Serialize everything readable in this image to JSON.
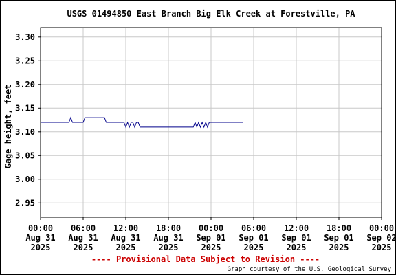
{
  "chart_data": {
    "type": "line",
    "title": "USGS 01494850 East Branch Big Elk Creek at Forestville, PA",
    "ylabel": "Gage height, feet",
    "xlabel": "",
    "ylim": [
      2.92,
      3.32
    ],
    "yticks": [
      "3.30",
      "3.25",
      "3.20",
      "3.15",
      "3.10",
      "3.05",
      "3.00",
      "2.95"
    ],
    "xlim": [
      "2025-08-31 00:00",
      "2025-09-02 00:00"
    ],
    "xticks": [
      {
        "time": "00:00",
        "date": "Aug 31",
        "year": "2025"
      },
      {
        "time": "06:00",
        "date": "Aug 31",
        "year": "2025"
      },
      {
        "time": "12:00",
        "date": "Aug 31",
        "year": "2025"
      },
      {
        "time": "18:00",
        "date": "Aug 31",
        "year": "2025"
      },
      {
        "time": "00:00",
        "date": "Sep 01",
        "year": "2025"
      },
      {
        "time": "06:00",
        "date": "Sep 01",
        "year": "2025"
      },
      {
        "time": "12:00",
        "date": "Sep 01",
        "year": "2025"
      },
      {
        "time": "18:00",
        "date": "Sep 01",
        "year": "2025"
      },
      {
        "time": "00:00",
        "date": "Sep 02",
        "year": "2025"
      }
    ],
    "grid": true,
    "series_color": "#00008b",
    "series": [
      {
        "x": [
          "2025-08-31 00:00",
          "2025-08-31 04:00",
          "2025-08-31 04:15",
          "2025-08-31 04:30",
          "2025-08-31 06:00",
          "2025-08-31 06:15",
          "2025-08-31 09:00",
          "2025-08-31 09:15",
          "2025-08-31 11:45",
          "2025-08-31 12:00",
          "2025-08-31 12:15",
          "2025-08-31 12:30",
          "2025-08-31 12:45",
          "2025-08-31 13:00",
          "2025-08-31 13:15",
          "2025-08-31 13:30",
          "2025-08-31 13:45",
          "2025-08-31 14:00",
          "2025-08-31 14:15",
          "2025-08-31 21:30",
          "2025-08-31 21:45",
          "2025-08-31 22:00",
          "2025-08-31 22:15",
          "2025-08-31 22:30",
          "2025-08-31 22:45",
          "2025-08-31 23:00",
          "2025-08-31 23:15",
          "2025-08-31 23:30",
          "2025-08-31 23:45",
          "2025-09-01 00:00",
          "2025-09-01 04:30"
        ],
        "y": [
          3.12,
          3.12,
          3.13,
          3.12,
          3.12,
          3.13,
          3.13,
          3.12,
          3.12,
          3.11,
          3.12,
          3.11,
          3.12,
          3.12,
          3.11,
          3.12,
          3.12,
          3.11,
          3.11,
          3.11,
          3.12,
          3.11,
          3.12,
          3.11,
          3.12,
          3.11,
          3.12,
          3.11,
          3.12,
          3.12,
          3.12
        ]
      }
    ]
  },
  "footer": {
    "provisional": "---- Provisional Data Subject to Revision ----",
    "provisional_color": "#cc0000",
    "courtesy": "Graph courtesy of the U.S. Geological Survey"
  }
}
